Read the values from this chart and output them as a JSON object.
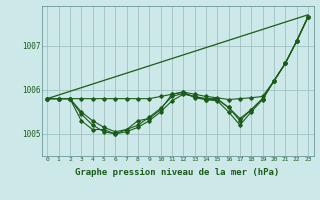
{
  "background_color": "#cce8e8",
  "plot_bg_color": "#cce8e8",
  "line_color": "#1a5c1a",
  "grid_color": "#99bbbb",
  "xlabel": "Graphe pression niveau de la mer (hPa)",
  "xlabel_fontsize": 6.5,
  "xlim": [
    -0.5,
    23.5
  ],
  "ylim": [
    1004.5,
    1007.9
  ],
  "yticks": [
    1005,
    1006,
    1007
  ],
  "xticks": [
    0,
    1,
    2,
    3,
    4,
    5,
    6,
    7,
    8,
    9,
    10,
    11,
    12,
    13,
    14,
    15,
    16,
    17,
    18,
    19,
    20,
    21,
    22,
    23
  ],
  "series": [
    {
      "x": [
        0,
        23
      ],
      "y": [
        1005.8,
        1007.7
      ],
      "marker": "None",
      "markersize": 0,
      "linewidth": 0.9
    },
    {
      "x": [
        0,
        1,
        2,
        3,
        4,
        5,
        6,
        7,
        8,
        9,
        10,
        11,
        12,
        13,
        14,
        15,
        16,
        17,
        18,
        19,
        20,
        21,
        22,
        23
      ],
      "y": [
        1005.8,
        1005.8,
        1005.8,
        1005.8,
        1005.8,
        1005.8,
        1005.8,
        1005.8,
        1005.8,
        1005.8,
        1005.85,
        1005.9,
        1005.95,
        1005.9,
        1005.85,
        1005.82,
        1005.78,
        1005.8,
        1005.82,
        1005.85,
        1006.2,
        1006.6,
        1007.1,
        1007.65
      ],
      "marker": "D",
      "markersize": 1.8,
      "linewidth": 0.8
    },
    {
      "x": [
        0,
        1,
        2,
        3,
        4,
        5,
        6,
        7,
        8,
        9,
        10,
        11,
        12,
        13,
        14,
        15,
        16,
        17,
        18,
        19,
        20,
        21,
        22,
        23
      ],
      "y": [
        1005.8,
        1005.8,
        1005.8,
        1005.45,
        1005.2,
        1005.05,
        1005.0,
        1005.05,
        1005.15,
        1005.3,
        1005.5,
        1005.75,
        1005.9,
        1005.85,
        1005.8,
        1005.8,
        1005.6,
        1005.35,
        1005.55,
        1005.8,
        1006.2,
        1006.6,
        1007.1,
        1007.65
      ],
      "marker": "D",
      "markersize": 1.8,
      "linewidth": 0.8
    },
    {
      "x": [
        0,
        1,
        2,
        3,
        4,
        5,
        6,
        7,
        8,
        9,
        10,
        11,
        12,
        13,
        14,
        15,
        16,
        17,
        18,
        19,
        20,
        21,
        22,
        23
      ],
      "y": [
        1005.8,
        1005.8,
        1005.8,
        1005.3,
        1005.1,
        1005.1,
        1005.0,
        1005.1,
        1005.3,
        1005.35,
        1005.55,
        1005.9,
        1005.95,
        1005.82,
        1005.78,
        1005.75,
        1005.5,
        1005.2,
        1005.5,
        1005.78,
        1006.2,
        1006.6,
        1007.1,
        1007.65
      ],
      "marker": "D",
      "markersize": 1.8,
      "linewidth": 0.8
    },
    {
      "x": [
        0,
        1,
        2,
        3,
        4,
        5,
        6,
        7,
        8,
        9,
        10,
        11,
        12,
        13,
        14,
        15,
        16,
        17,
        18,
        19,
        20,
        21,
        22,
        23
      ],
      "y": [
        1005.8,
        1005.8,
        1005.8,
        1005.5,
        1005.3,
        1005.15,
        1005.05,
        1005.1,
        1005.2,
        1005.38,
        1005.58,
        1005.85,
        1005.92,
        1005.85,
        1005.78,
        1005.78,
        1005.6,
        1005.3,
        1005.55,
        1005.8,
        1006.2,
        1006.6,
        1007.1,
        1007.65
      ],
      "marker": "D",
      "markersize": 1.8,
      "linewidth": 0.8
    }
  ]
}
